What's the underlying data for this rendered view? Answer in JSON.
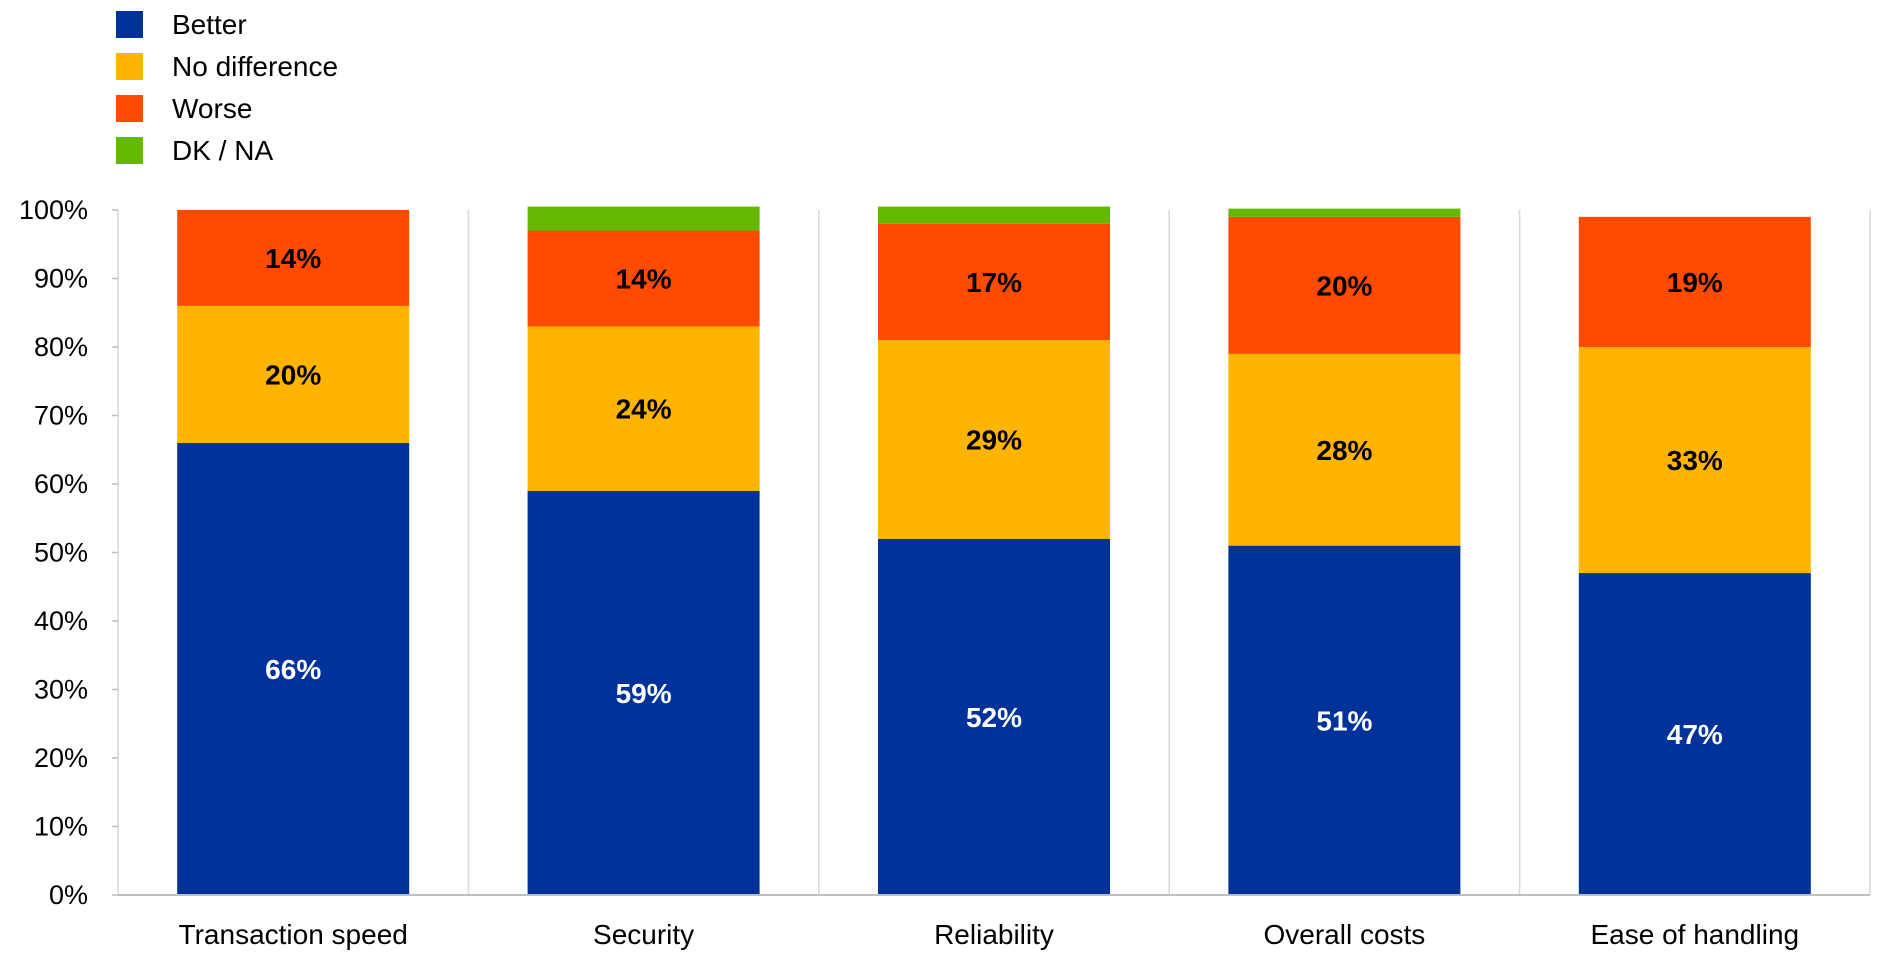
{
  "chart_data": {
    "type": "bar",
    "stacked": true,
    "categories": [
      "Transaction speed",
      "Security",
      "Reliability",
      "Overall costs",
      "Ease of handling"
    ],
    "series": [
      {
        "name": "Better",
        "color": "#003299",
        "label_color": "#ffffff",
        "values": [
          66,
          59,
          52,
          51,
          47
        ],
        "labels": [
          "66%",
          "59%",
          "52%",
          "51%",
          "47%"
        ]
      },
      {
        "name": "No difference",
        "color": "#ffb400",
        "label_color": "#000000",
        "values": [
          20,
          24,
          29,
          28,
          33
        ],
        "labels": [
          "20%",
          "24%",
          "29%",
          "28%",
          "33%"
        ]
      },
      {
        "name": "Worse",
        "color": "#ff4b00",
        "label_color": "#000000",
        "values": [
          14,
          14,
          17,
          20,
          19
        ],
        "labels": [
          "14%",
          "14%",
          "17%",
          "20%",
          "19%"
        ]
      },
      {
        "name": "DK / NA",
        "color": "#65b800",
        "label_color": "#000000",
        "values": [
          0,
          3.5,
          2.5,
          1.2,
          0
        ],
        "labels": [
          "",
          "",
          "",
          "",
          ""
        ]
      }
    ],
    "y_ticks": [
      "0%",
      "10%",
      "20%",
      "30%",
      "40%",
      "50%",
      "60%",
      "70%",
      "80%",
      "90%",
      "100%"
    ],
    "ylim": [
      0,
      100
    ],
    "xlabel": "",
    "ylabel": "",
    "title": "",
    "grid": "vertical separators between categories",
    "legend_position": "top-left"
  }
}
